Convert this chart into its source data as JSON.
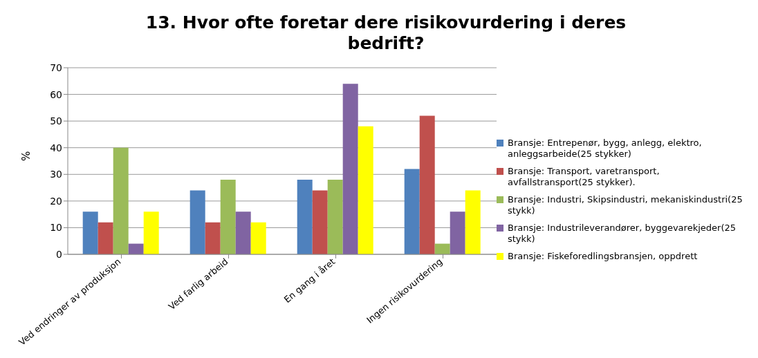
{
  "chart_data": {
    "type": "bar",
    "title": "13. Hvor ofte foretar dere risikovurdering i deres bedrift?",
    "ylabel": "%",
    "categories": [
      "Ved endringer av produksjon",
      "Ved farlig arbeid",
      "En gang i året",
      "Ingen risikovurdering"
    ],
    "series": [
      {
        "name": "Bransje: Entrepenør, bygg, anlegg, elektro, anleggsarbeide(25 stykker)",
        "color": "#4f81bd",
        "values": [
          16,
          24,
          28,
          32
        ]
      },
      {
        "name": "Bransje: Transport, varetransport, avfallstransport(25 stykker).",
        "color": "#c0504d",
        "values": [
          12,
          12,
          24,
          52
        ]
      },
      {
        "name": "Bransje: Industri, Skipsindustri, mekaniskindustri(25 stykk)",
        "color": "#9bbb59",
        "values": [
          40,
          28,
          28,
          4
        ]
      },
      {
        "name": "Bransje: Industrileverandører, byggevarekjeder(25 stykk)",
        "color": "#8064a2",
        "values": [
          4,
          16,
          64,
          16
        ]
      },
      {
        "name": "Bransje: Fiskeforedlingsbransjen, oppdrett",
        "color": "#ffff00",
        "values": [
          16,
          12,
          48,
          24
        ]
      }
    ],
    "ylim": [
      0,
      70
    ],
    "yticks": [
      0,
      10,
      20,
      30,
      40,
      50,
      60,
      70
    ],
    "grid": "y",
    "legend": "right"
  }
}
